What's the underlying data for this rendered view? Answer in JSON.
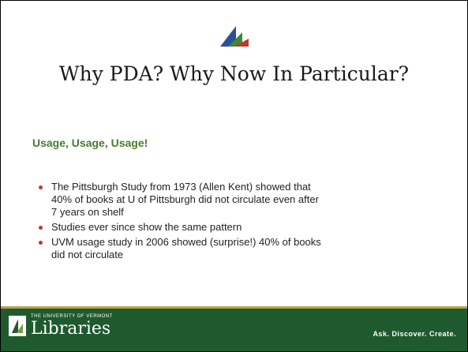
{
  "title": "Why PDA?  Why Now In Particular?",
  "subtitle": "Usage, Usage, Usage!",
  "bullets": [
    [
      "The Pittsburgh Study from 1973 (Allen Kent) showed that",
      "40% of books at U of Pittsburgh did not circulate even after",
      "7 years on shelf"
    ],
    [
      "Studies ever since show the same pattern"
    ],
    [
      "UVM usage study in 2006 showed (surprise!) 40% of books",
      "did not circulate"
    ]
  ],
  "footer": {
    "university": "THE UNIVERSITY OF VERMONT",
    "libraries": "Libraries",
    "tagline": "Ask. Discover. Create."
  }
}
